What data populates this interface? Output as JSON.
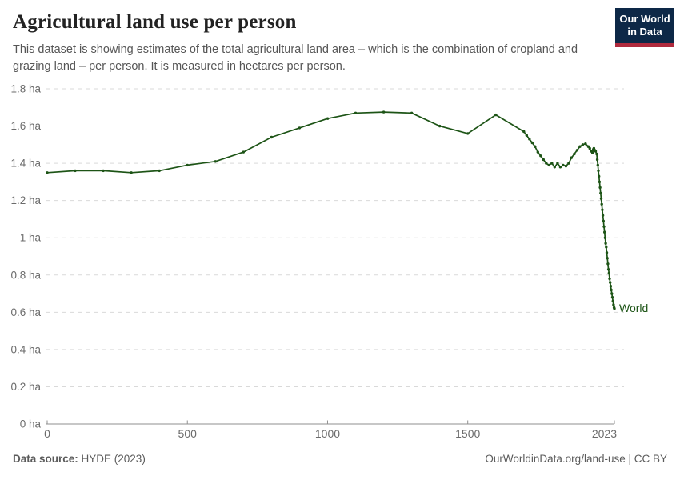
{
  "header": {
    "title": "Agricultural land use per person",
    "subtitle": "This dataset is showing estimates of the total agricultural land area – which is the combination of cropland and grazing land – per person. It is measured in hectares per person.",
    "logo": {
      "line1": "Our World",
      "line2": "in Data",
      "background_color": "#0d2847",
      "stripe_color": "#b02a3d"
    }
  },
  "footer": {
    "source_label": "Data source:",
    "source_value": " HYDE (2023)",
    "attribution": "OurWorldinData.org/land-use | CC BY"
  },
  "chart_data": {
    "type": "line",
    "title": "Agricultural land use per person",
    "unit": "hectares per person",
    "xlabel": "",
    "ylabel": "",
    "xlim": [
      0,
      2023
    ],
    "ylim": [
      0,
      1.8
    ],
    "grid": "horizontal-dashed",
    "grid_color": "#d9d9d9",
    "axis_color": "#8f8f8f",
    "tick_label_color": "#6b6b6b",
    "legend_position": "end-of-line",
    "x_ticks": [
      0,
      500,
      1000,
      1500,
      2023
    ],
    "y_ticks": [
      {
        "value": 0,
        "label": "0 ha"
      },
      {
        "value": 0.2,
        "label": "0.2 ha"
      },
      {
        "value": 0.4,
        "label": "0.4 ha"
      },
      {
        "value": 0.6,
        "label": "0.6 ha"
      },
      {
        "value": 0.8,
        "label": "0.8 ha"
      },
      {
        "value": 1,
        "label": "1 ha"
      },
      {
        "value": 1.2,
        "label": "1.2 ha"
      },
      {
        "value": 1.4,
        "label": "1.4 ha"
      },
      {
        "value": 1.6,
        "label": "1.6 ha"
      },
      {
        "value": 1.8,
        "label": "1.8 ha"
      }
    ],
    "series": [
      {
        "name": "World",
        "color": "#1d5416",
        "x": [
          0,
          100,
          200,
          300,
          400,
          500,
          600,
          700,
          800,
          900,
          1000,
          1100,
          1200,
          1300,
          1400,
          1500,
          1600,
          1700,
          1710,
          1720,
          1730,
          1740,
          1750,
          1760,
          1770,
          1780,
          1790,
          1800,
          1810,
          1820,
          1830,
          1840,
          1850,
          1860,
          1870,
          1880,
          1890,
          1900,
          1910,
          1920,
          1930,
          1935,
          1940,
          1945,
          1948,
          1950,
          1953,
          1956,
          1960,
          1962,
          1964,
          1966,
          1968,
          1970,
          1972,
          1974,
          1976,
          1978,
          1980,
          1982,
          1984,
          1986,
          1988,
          1990,
          1992,
          1994,
          1996,
          1998,
          2000,
          2002,
          2004,
          2006,
          2008,
          2010,
          2012,
          2014,
          2016,
          2018,
          2020,
          2022,
          2023
        ],
        "values": [
          1.35,
          1.36,
          1.36,
          1.35,
          1.36,
          1.39,
          1.41,
          1.46,
          1.54,
          1.59,
          1.64,
          1.67,
          1.675,
          1.67,
          1.6,
          1.56,
          1.66,
          1.57,
          1.55,
          1.53,
          1.51,
          1.49,
          1.46,
          1.44,
          1.42,
          1.4,
          1.39,
          1.4,
          1.38,
          1.4,
          1.38,
          1.39,
          1.385,
          1.4,
          1.43,
          1.45,
          1.47,
          1.49,
          1.5,
          1.505,
          1.49,
          1.48,
          1.465,
          1.455,
          1.475,
          1.48,
          1.47,
          1.465,
          1.45,
          1.42,
          1.39,
          1.36,
          1.33,
          1.3,
          1.27,
          1.24,
          1.21,
          1.18,
          1.15,
          1.12,
          1.09,
          1.06,
          1.03,
          1.0,
          0.97,
          0.95,
          0.92,
          0.89,
          0.86,
          0.83,
          0.81,
          0.78,
          0.76,
          0.74,
          0.72,
          0.7,
          0.68,
          0.66,
          0.64,
          0.625,
          0.62
        ]
      }
    ]
  }
}
